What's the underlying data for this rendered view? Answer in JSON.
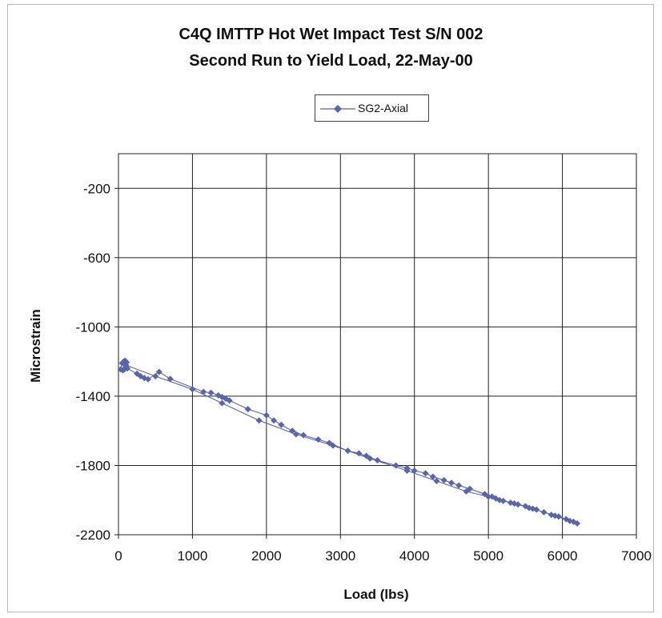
{
  "chart_data": {
    "type": "scatter",
    "title": "C4Q IMTTP Hot Wet Impact Test S/N 002",
    "subtitle": "Second Run to Yield Load, 22-May-00",
    "xlabel": "Load (lbs)",
    "ylabel": "Microstrain",
    "xlim": [
      0,
      7000
    ],
    "ylim": [
      -2200,
      0
    ],
    "x_ticks": [
      "0",
      "1000",
      "2000",
      "3000",
      "4000",
      "5000",
      "6000",
      "7000"
    ],
    "y_ticks": [
      "-200",
      "-600",
      "-1000",
      "-1400",
      "-1800",
      "-2200"
    ],
    "grid": true,
    "legend_position": "top-center",
    "series": [
      {
        "name": "SG2-Axial",
        "color": "#5a64a8",
        "marker": "diamond",
        "connected": true,
        "points": [
          [
            30,
            -1245
          ],
          [
            50,
            -1210
          ],
          [
            70,
            -1200
          ],
          [
            90,
            -1195
          ],
          [
            110,
            -1205
          ],
          [
            100,
            -1230
          ],
          [
            80,
            -1245
          ],
          [
            60,
            -1250
          ],
          [
            120,
            -1240
          ],
          [
            250,
            -1270
          ],
          [
            300,
            -1285
          ],
          [
            350,
            -1295
          ],
          [
            400,
            -1302
          ],
          [
            550,
            -1260
          ],
          [
            700,
            -1300
          ],
          [
            1150,
            -1375
          ],
          [
            1250,
            -1380
          ],
          [
            1350,
            -1395
          ],
          [
            1400,
            -1405
          ],
          [
            1450,
            -1415
          ],
          [
            1500,
            -1425
          ],
          [
            1750,
            -1475
          ],
          [
            2000,
            -1510
          ],
          [
            2100,
            -1540
          ],
          [
            2200,
            -1565
          ],
          [
            2350,
            -1600
          ],
          [
            2500,
            -1625
          ],
          [
            2700,
            -1650
          ],
          [
            2850,
            -1670
          ],
          [
            3100,
            -1715
          ],
          [
            3250,
            -1730
          ],
          [
            3350,
            -1745
          ],
          [
            3500,
            -1770
          ],
          [
            3750,
            -1800
          ],
          [
            3900,
            -1815
          ],
          [
            4000,
            -1830
          ],
          [
            4150,
            -1845
          ],
          [
            4250,
            -1865
          ],
          [
            4400,
            -1885
          ],
          [
            4500,
            -1900
          ],
          [
            4600,
            -1915
          ],
          [
            4750,
            -1935
          ],
          [
            4950,
            -1965
          ],
          [
            5050,
            -1980
          ],
          [
            5100,
            -1990
          ],
          [
            5150,
            -2000
          ],
          [
            5200,
            -2005
          ],
          [
            5300,
            -2015
          ],
          [
            5400,
            -2025
          ],
          [
            5500,
            -2035
          ],
          [
            5550,
            -2045
          ],
          [
            5650,
            -2055
          ],
          [
            5750,
            -2070
          ],
          [
            5850,
            -2085
          ],
          [
            5950,
            -2095
          ],
          [
            6050,
            -2110
          ],
          [
            6150,
            -2125
          ],
          [
            6200,
            -2135
          ],
          [
            6100,
            -2120
          ],
          [
            5900,
            -2090
          ],
          [
            5600,
            -2050
          ],
          [
            5350,
            -2020
          ],
          [
            5000,
            -1980
          ],
          [
            4700,
            -1950
          ],
          [
            4300,
            -1890
          ],
          [
            3900,
            -1830
          ],
          [
            3400,
            -1760
          ],
          [
            2900,
            -1685
          ],
          [
            2400,
            -1620
          ],
          [
            1900,
            -1540
          ],
          [
            1400,
            -1440
          ],
          [
            1000,
            -1360
          ],
          [
            500,
            -1285
          ],
          [
            100,
            -1220
          ]
        ]
      }
    ]
  },
  "legend": {
    "label": "SG2-Axial"
  }
}
